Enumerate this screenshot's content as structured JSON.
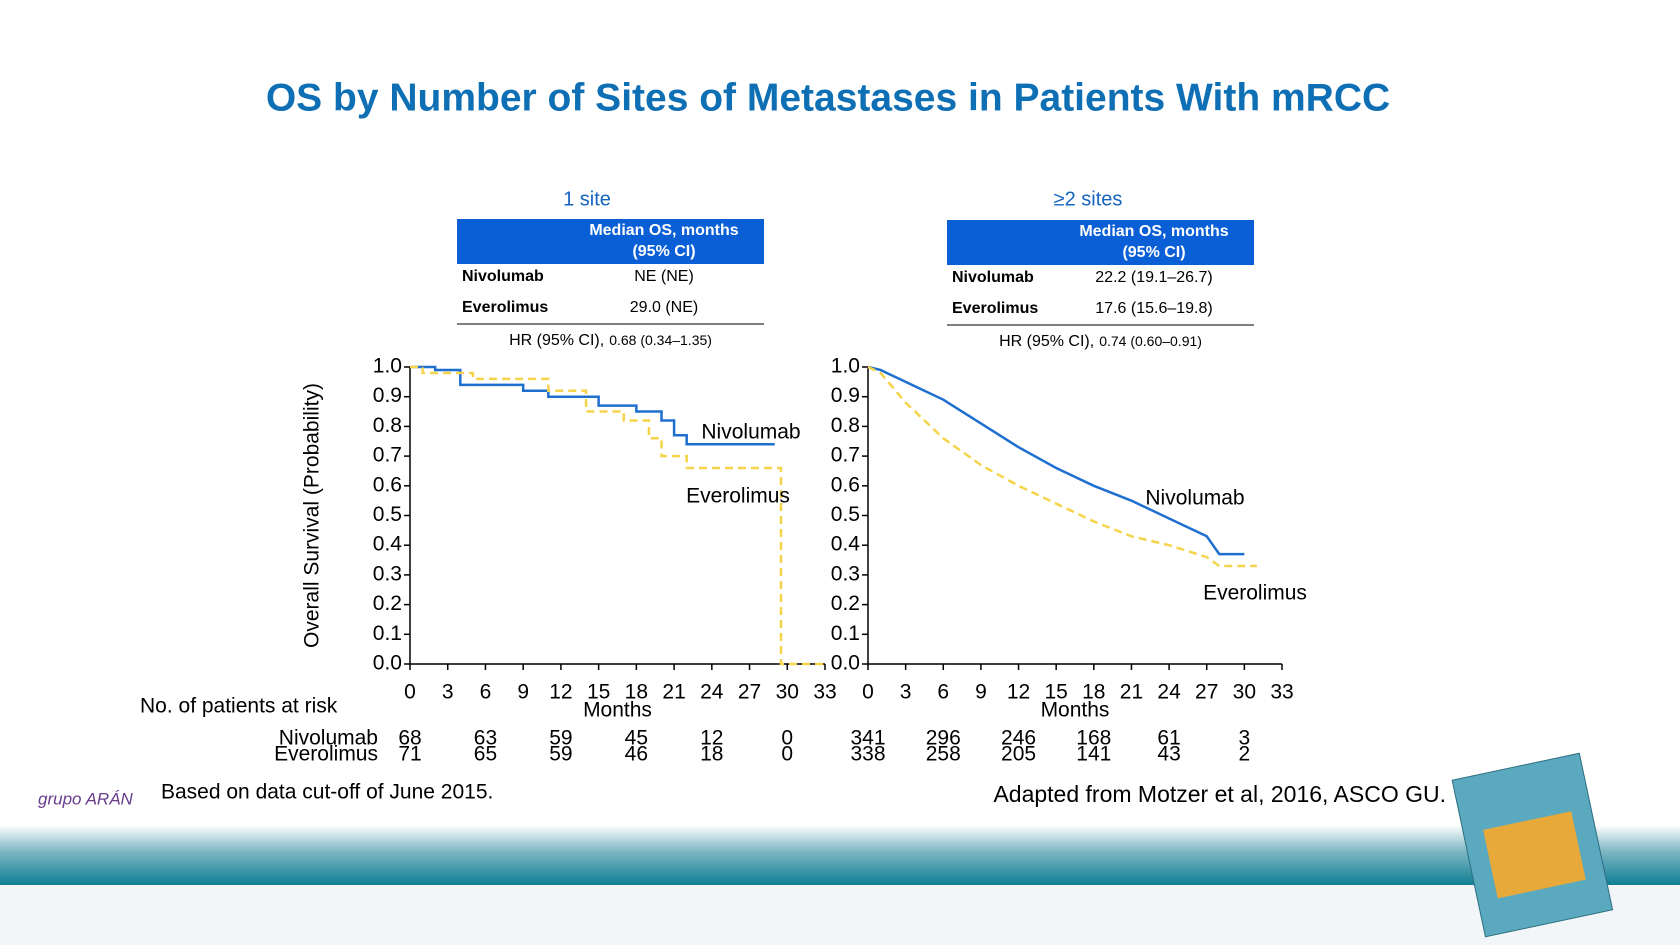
{
  "title": "OS by Number of Sites of Metastases in Patients With mRCC",
  "risk_title": "No. of patients at risk",
  "footnote": "Based on data cut-off of June 2015.",
  "source": "Adapted from Motzer et al, 2016, ASCO GU.",
  "logo": "grupo ARÁN",
  "chart_data": [
    {
      "type": "line",
      "title": "1 site",
      "table": {
        "header": [
          "Median OS, months",
          "(95% CI)"
        ],
        "rows": [
          [
            "Nivolumab",
            "NE (NE)"
          ],
          [
            "Everolimus",
            "29.0 (NE)"
          ]
        ],
        "hr_label": "HR (95% CI),",
        "hr_value": "0.68 (0.34–1.35)"
      },
      "y_label": "Overall Survival (Probability)",
      "x_label": "Months",
      "xlim": [
        0,
        33
      ],
      "xticks": [
        0,
        3,
        6,
        9,
        12,
        15,
        18,
        21,
        24,
        27,
        30,
        33
      ],
      "ylim": [
        0,
        1
      ],
      "yticks": [
        {
          "value": 0,
          "label": "0.0"
        },
        0.1,
        0.2,
        0.3,
        0.4,
        0.5,
        0.6,
        0.7,
        0.8,
        0.9,
        {
          "value": 1,
          "label": "1.0"
        }
      ],
      "series": [
        {
          "name": "Nivolumab",
          "color": "#1f6fd0",
          "dashed": false,
          "x": [
            0,
            2,
            2,
            4,
            4,
            9,
            9,
            11,
            11,
            15,
            15,
            18,
            18,
            20,
            20,
            21,
            21,
            22,
            22,
            29
          ],
          "values": [
            1,
            1,
            0.99,
            0.99,
            0.94,
            0.94,
            0.92,
            0.92,
            0.9,
            0.9,
            0.87,
            0.87,
            0.85,
            0.85,
            0.82,
            0.82,
            0.77,
            0.77,
            0.74,
            0.74
          ]
        },
        {
          "name": "Everolimus",
          "color": "#f5d44a",
          "dashed": true,
          "x": [
            0,
            1,
            1,
            5,
            5,
            11,
            11,
            14,
            14,
            17,
            17,
            19,
            19,
            20,
            20,
            22,
            22,
            29.5,
            29.5,
            33
          ],
          "values": [
            1,
            1,
            0.98,
            0.98,
            0.96,
            0.96,
            0.92,
            0.92,
            0.85,
            0.85,
            0.82,
            0.82,
            0.76,
            0.76,
            0.7,
            0.7,
            0.66,
            0.66,
            0,
            0
          ]
        }
      ],
      "at_risk": {
        "x": [
          0,
          6,
          12,
          18,
          24,
          30
        ],
        "rows": [
          [
            68,
            63,
            59,
            45,
            12,
            0
          ],
          [
            71,
            65,
            59,
            46,
            18,
            0
          ]
        ]
      }
    },
    {
      "type": "line",
      "title": "≥2 sites",
      "table": {
        "header": [
          "Median OS, months",
          "(95% CI)"
        ],
        "rows": [
          [
            "Nivolumab",
            "22.2 (19.1–26.7)"
          ],
          [
            "Everolimus",
            "17.6 (15.6–19.8)"
          ]
        ],
        "hr_label": "HR (95% CI),",
        "hr_value": "0.74 (0.60–0.91)"
      },
      "x_label": "Months",
      "xlim": [
        0,
        33
      ],
      "xticks": [
        0,
        3,
        6,
        9,
        12,
        15,
        18,
        21,
        24,
        27,
        30,
        33
      ],
      "ylim": [
        0,
        1
      ],
      "yticks": [
        {
          "value": 0,
          "label": "0.0"
        },
        0.1,
        0.2,
        0.3,
        0.4,
        0.5,
        0.6,
        0.7,
        0.8,
        0.9,
        {
          "value": 1,
          "label": "1.0"
        }
      ],
      "series": [
        {
          "name": "Nivolumab",
          "color": "#1f6fd0",
          "dashed": false,
          "x": [
            0,
            1,
            3,
            6,
            9,
            12,
            15,
            18,
            21,
            24,
            27,
            28,
            30
          ],
          "values": [
            1,
            0.99,
            0.95,
            0.89,
            0.81,
            0.73,
            0.66,
            0.6,
            0.55,
            0.49,
            0.43,
            0.37,
            0.37
          ]
        },
        {
          "name": "Everolimus",
          "color": "#f5d44a",
          "dashed": true,
          "x": [
            0,
            1,
            3,
            6,
            9,
            12,
            15,
            18,
            21,
            24,
            27,
            28,
            31
          ],
          "values": [
            1,
            0.98,
            0.88,
            0.76,
            0.67,
            0.6,
            0.54,
            0.48,
            0.43,
            0.4,
            0.36,
            0.33,
            0.33
          ]
        }
      ],
      "at_risk": {
        "x": [
          0,
          6,
          12,
          18,
          24,
          30
        ],
        "rows": [
          [
            341,
            296,
            246,
            168,
            61,
            3
          ],
          [
            338,
            258,
            205,
            141,
            43,
            2
          ]
        ]
      }
    }
  ]
}
